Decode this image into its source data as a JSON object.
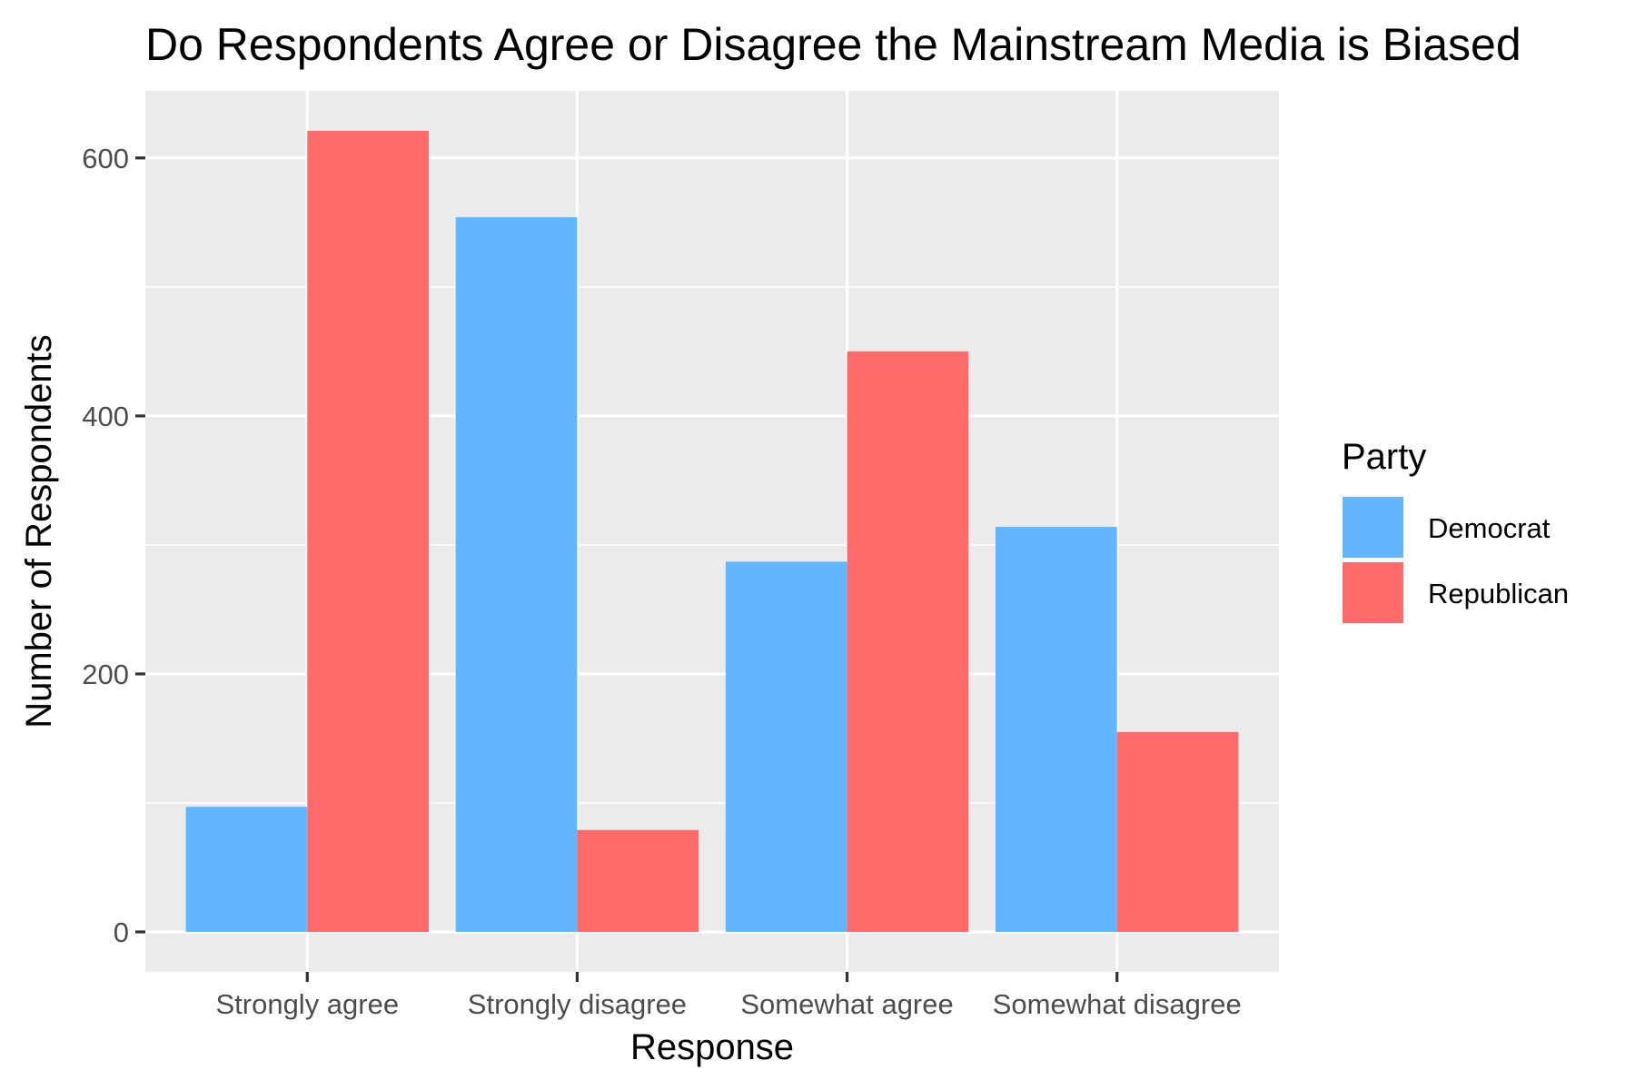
{
  "chart_data": {
    "type": "bar",
    "title": "Do Respondents Agree or Disagree the Mainstream Media is Biased",
    "xlabel": "Response",
    "ylabel": "Number of Respondents",
    "categories": [
      "Strongly agree",
      "Strongly disagree",
      "Somewhat agree",
      "Somewhat disagree"
    ],
    "series": [
      {
        "name": "Democrat",
        "color": "#62b6ff",
        "values": [
          97,
          554,
          287,
          314
        ]
      },
      {
        "name": "Republican",
        "color": "#ff6b6b",
        "values": [
          621,
          79,
          450,
          155
        ]
      }
    ],
    "yticks": [
      0,
      200,
      400,
      600
    ],
    "ylim": [
      -31,
      652
    ],
    "legend": {
      "title": "Party",
      "position": "right"
    },
    "grid": true
  }
}
